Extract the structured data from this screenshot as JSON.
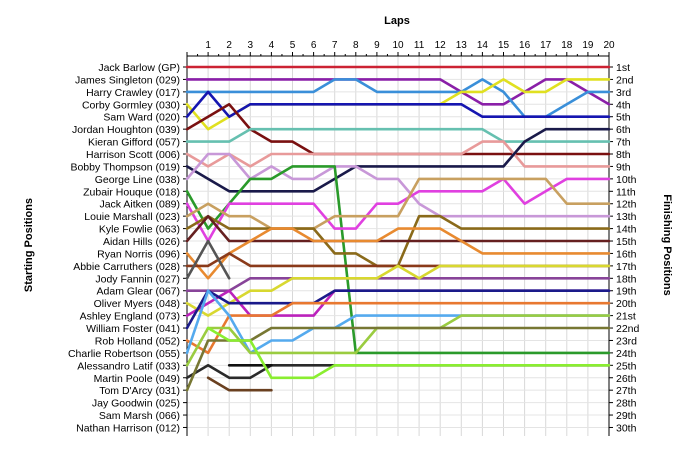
{
  "chart_data": {
    "type": "line",
    "title": "Laps",
    "xlabel": "Laps",
    "ylabel_left": "Starting Positions",
    "ylabel_right": "Finishing Positions",
    "x": [
      0,
      1,
      2,
      3,
      4,
      5,
      6,
      7,
      8,
      9,
      10,
      11,
      12,
      13,
      14,
      15,
      16,
      17,
      18,
      19,
      20
    ],
    "x_tick_labels": [
      "1",
      "2",
      "3",
      "4",
      "5",
      "6",
      "7",
      "8",
      "9",
      "10",
      "11",
      "12",
      "13",
      "14",
      "15",
      "16",
      "17",
      "18",
      "19",
      "20"
    ],
    "ylim": [
      1,
      30
    ],
    "grid": true,
    "drivers": [
      "Jack Barlow (GP)",
      "James Singleton (029)",
      "Harry Crawley (017)",
      "Corby Gormley (030)",
      "Sam Ward (020)",
      "Jordan Houghton (039)",
      "Kieran Gifford (057)",
      "Harrison Scott (006)",
      "Bobby Thompson (019)",
      "George Line (038)",
      "Zubair Houque (018)",
      "Jack Aitken (089)",
      "Louie Marshall (023)",
      "Kyle Fowlie (063)",
      "Aidan Hills (026)",
      "Ryan Norris (096)",
      "Abbie Carruthers (028)",
      "Jody Fannin (027)",
      "Adam Glear (067)",
      "Oliver Myers (048)",
      "Ashley England (073)",
      "William Foster (041)",
      "Rob Holland (052)",
      "Charlie Robertson (055)",
      "Alessandro Latif (033)",
      "Martin Poole (049)",
      "Tom D'Arcy (031)",
      "Jay Goodwin (025)",
      "Sam Marsh (066)",
      "Nathan Harrison (012)"
    ],
    "finishing_positions": [
      "1st",
      "2nd",
      "3rd",
      "4th",
      "5th",
      "6th",
      "7th",
      "8th",
      "9th",
      "10th",
      "11th",
      "12th",
      "13th",
      "14th",
      "15th",
      "16th",
      "17th",
      "18th",
      "19th",
      "20th",
      "21st",
      "22nd",
      "23rd",
      "24th",
      "25th",
      "26th",
      "27th",
      "28th",
      "29th",
      "30th"
    ],
    "series": [
      {
        "color": "#cc2233",
        "values": [
          1,
          1,
          1,
          1,
          1,
          1,
          1,
          1,
          1,
          1,
          1,
          1,
          1,
          1,
          1,
          1,
          1,
          1,
          1,
          1,
          1
        ]
      },
      {
        "color": "#8a1fa8",
        "values": [
          2,
          2,
          2,
          2,
          2,
          2,
          2,
          2,
          2,
          2,
          2,
          2,
          2,
          3,
          4,
          4,
          3,
          2,
          2,
          3,
          4
        ]
      },
      {
        "color": "#3a8fd9",
        "values": [
          3,
          3,
          3,
          3,
          3,
          3,
          3,
          2,
          2,
          3,
          3,
          3,
          3,
          3,
          2,
          3,
          5,
          5,
          4,
          3,
          3
        ]
      },
      {
        "color": "#e0e020",
        "values": [
          4,
          6,
          5,
          4,
          4,
          4,
          4,
          4,
          4,
          4,
          4,
          4,
          4,
          3,
          3,
          2,
          3,
          3,
          2,
          2,
          2
        ]
      },
      {
        "color": "#1515b0",
        "values": [
          5,
          3,
          5,
          4,
          4,
          4,
          4,
          4,
          4,
          4,
          4,
          4,
          4,
          4,
          5,
          5,
          5,
          5,
          5,
          5,
          5
        ]
      },
      {
        "color": "#7a1010",
        "values": [
          6,
          5,
          4,
          6,
          7,
          7,
          8,
          8,
          8,
          8,
          8,
          8,
          8,
          8,
          8,
          8,
          8,
          8,
          8,
          8,
          8
        ]
      },
      {
        "color": "#66c0b0",
        "values": [
          7,
          7,
          7,
          6,
          6,
          6,
          6,
          6,
          6,
          6,
          6,
          6,
          6,
          6,
          6,
          7,
          7,
          7,
          7,
          7,
          7
        ]
      },
      {
        "color": "#e89a9a",
        "values": [
          8,
          9,
          8,
          9,
          8,
          8,
          8,
          8,
          8,
          8,
          8,
          8,
          8,
          8,
          7,
          7,
          9,
          9,
          9,
          9,
          9
        ]
      },
      {
        "color": "#1a1a4a",
        "values": [
          9,
          10,
          11,
          11,
          11,
          11,
          11,
          10,
          9,
          9,
          9,
          9,
          9,
          9,
          9,
          9,
          7,
          6,
          6,
          6,
          6
        ]
      },
      {
        "color": "#c898d8",
        "values": [
          10,
          8,
          8,
          10,
          9,
          10,
          10,
          9,
          9,
          10,
          10,
          12,
          13,
          13,
          13,
          13,
          13,
          13,
          13,
          13,
          13
        ]
      },
      {
        "color": "#2a9a2a",
        "values": [
          11,
          14,
          12,
          10,
          10,
          9,
          9,
          9,
          24,
          24,
          24,
          24,
          24,
          24,
          24,
          24,
          24,
          24,
          24,
          24,
          24
        ]
      },
      {
        "color": "#e040e0",
        "values": [
          12,
          15,
          12,
          12,
          12,
          12,
          12,
          14,
          14,
          12,
          12,
          11,
          11,
          11,
          11,
          10,
          12,
          11,
          10,
          10,
          10
        ]
      },
      {
        "color": "#c8a060",
        "values": [
          13,
          12,
          13,
          13,
          14,
          14,
          14,
          13,
          13,
          13,
          13,
          10,
          10,
          10,
          10,
          10,
          10,
          10,
          12,
          12,
          12
        ]
      },
      {
        "color": "#8a6a1a",
        "values": [
          14,
          13,
          14,
          14,
          14,
          14,
          14,
          16,
          16,
          17,
          17,
          13,
          13,
          14,
          14,
          14,
          14,
          14,
          14,
          14,
          14
        ]
      },
      {
        "color": "#662020",
        "values": [
          15,
          13,
          15,
          15,
          15,
          15,
          15,
          15,
          15,
          15,
          15,
          15,
          15,
          15,
          15,
          15,
          15,
          15,
          15,
          15,
          15
        ]
      },
      {
        "color": "#e88a30",
        "values": [
          16,
          18,
          16,
          15,
          14,
          14,
          15,
          15,
          15,
          15,
          14,
          14,
          14,
          15,
          16,
          16,
          16,
          16,
          16,
          16,
          16
        ]
      },
      {
        "color": "#8a3a1a",
        "values": [
          17,
          17,
          16,
          17,
          17,
          17,
          17,
          17,
          17,
          17,
          17,
          17,
          17,
          17,
          17,
          17,
          17,
          17,
          17,
          17,
          17
        ]
      },
      {
        "color": "#555555",
        "values": [
          18,
          15,
          18,
          null,
          null,
          null,
          null,
          null,
          null,
          null,
          null,
          null,
          null,
          null,
          null,
          null,
          null,
          null,
          null,
          null,
          null
        ]
      },
      {
        "color": "#884499",
        "values": [
          19,
          19,
          19,
          18,
          18,
          18,
          18,
          18,
          18,
          18,
          18,
          18,
          18,
          18,
          18,
          18,
          18,
          18,
          18,
          18,
          18
        ]
      },
      {
        "color": "#d8d830",
        "values": [
          20,
          21,
          20,
          19,
          19,
          18,
          18,
          18,
          18,
          18,
          17,
          18,
          17,
          17,
          17,
          17,
          17,
          17,
          17,
          17,
          17
        ]
      },
      {
        "color": "#bb22bb",
        "values": [
          21,
          20,
          19,
          21,
          21,
          21,
          21,
          19,
          19,
          19,
          19,
          19,
          19,
          19,
          19,
          19,
          19,
          19,
          19,
          19,
          19
        ]
      },
      {
        "color": "#1a1a8a",
        "values": [
          22,
          19,
          20,
          20,
          20,
          20,
          20,
          19,
          19,
          19,
          19,
          19,
          19,
          19,
          19,
          19,
          19,
          19,
          19,
          19,
          19
        ]
      },
      {
        "color": "#e87830",
        "values": [
          23,
          24,
          21,
          21,
          21,
          20,
          20,
          20,
          20,
          20,
          20,
          20,
          20,
          20,
          20,
          20,
          20,
          20,
          20,
          20,
          20
        ]
      },
      {
        "color": "#55aaee",
        "values": [
          24,
          19,
          21,
          24,
          23,
          23,
          22,
          22,
          21,
          21,
          21,
          21,
          21,
          21,
          21,
          21,
          21,
          21,
          21,
          21,
          21
        ]
      },
      {
        "color": "#9acc40",
        "values": [
          25,
          22,
          22,
          24,
          24,
          24,
          24,
          24,
          24,
          22,
          22,
          22,
          22,
          21,
          21,
          21,
          21,
          21,
          21,
          21,
          21
        ]
      },
      {
        "color": "#2a2a2a",
        "values": [
          26,
          25,
          26,
          26,
          25,
          25,
          25,
          25,
          25,
          25,
          25,
          25,
          25,
          25,
          25,
          25,
          25,
          25,
          25,
          25,
          25
        ]
      },
      {
        "color": "#777733",
        "values": [
          27,
          23,
          23,
          23,
          22,
          22,
          22,
          22,
          22,
          22,
          22,
          22,
          22,
          22,
          22,
          22,
          22,
          22,
          22,
          22,
          22
        ]
      },
      {
        "color": "#111111",
        "values": [
          null,
          null,
          25,
          25,
          25,
          null,
          null,
          null,
          null,
          null,
          null,
          null,
          null,
          null,
          null,
          null,
          null,
          null,
          null,
          null,
          null
        ]
      },
      {
        "color": "#8aee30",
        "values": [
          null,
          22,
          23,
          23,
          26,
          26,
          26,
          25,
          25,
          25,
          25,
          25,
          25,
          25,
          25,
          25,
          25,
          25,
          25,
          25,
          25
        ]
      },
      {
        "color": "#6a4020",
        "values": [
          null,
          26,
          27,
          27,
          27,
          null,
          null,
          null,
          null,
          null,
          null,
          null,
          null,
          null,
          null,
          null,
          null,
          null,
          null,
          null,
          null
        ]
      }
    ]
  }
}
